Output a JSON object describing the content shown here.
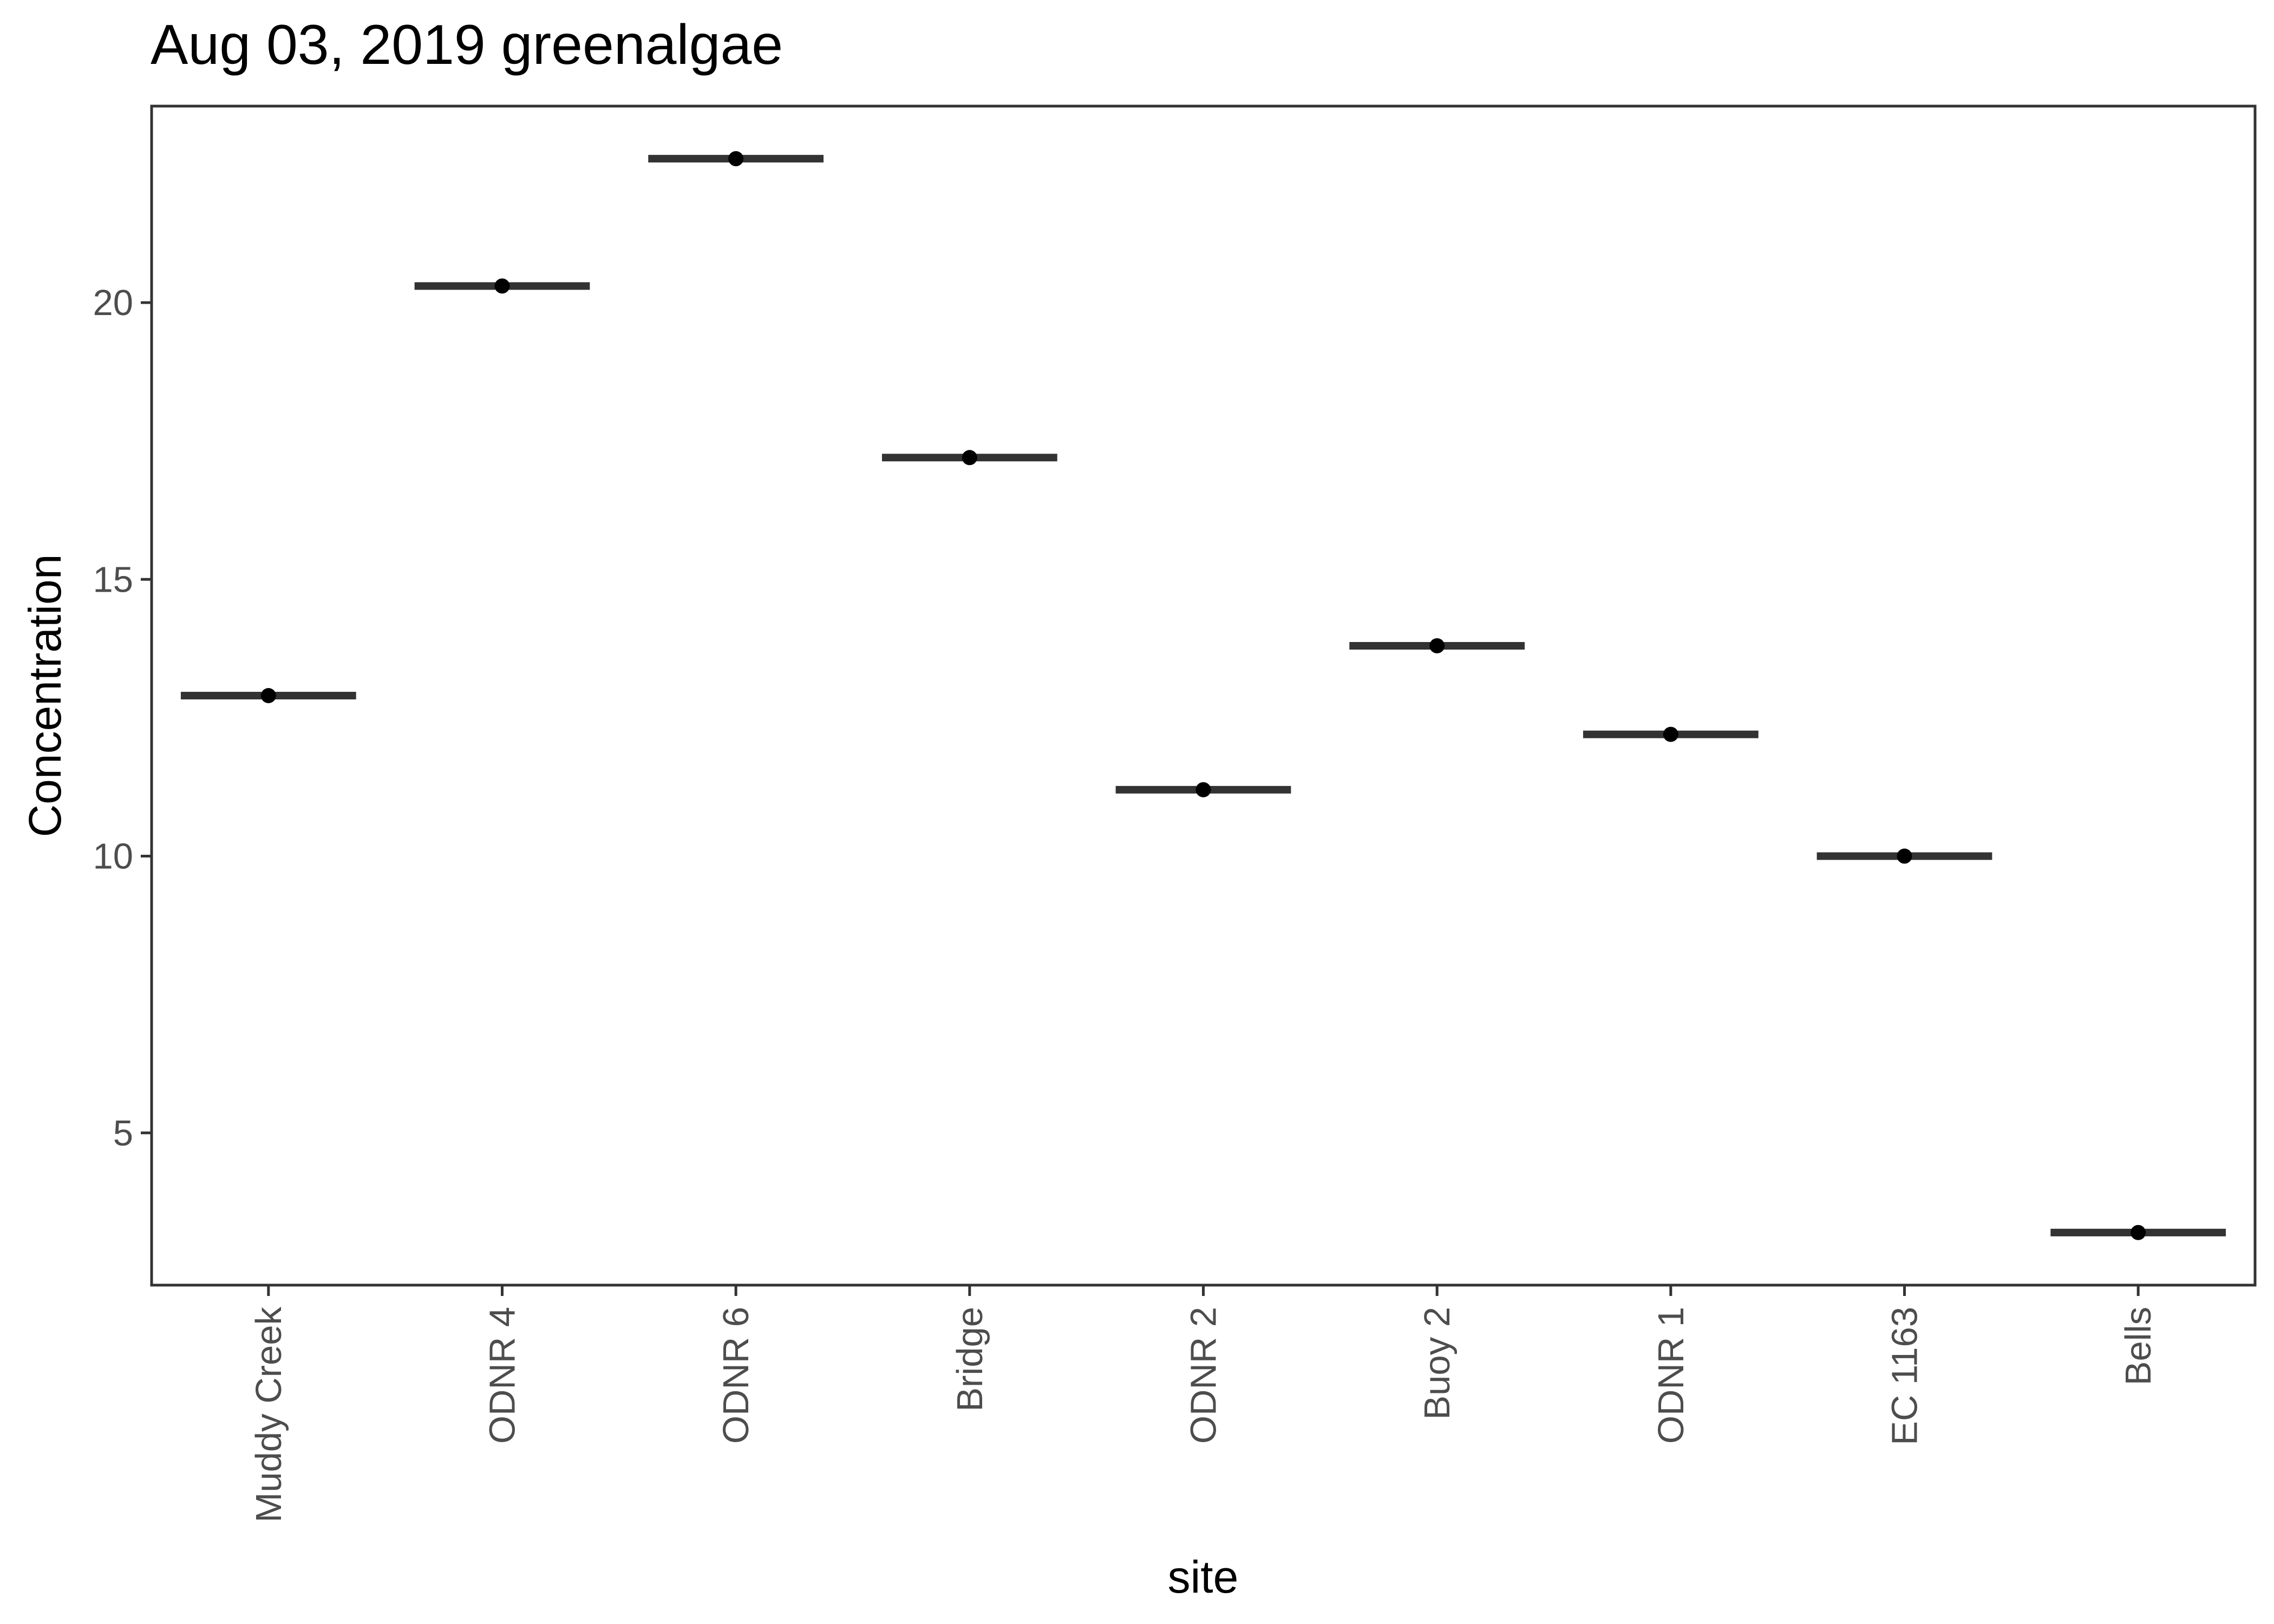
{
  "chart_data": {
    "type": "scatter",
    "title": "Aug 03, 2019 greenalgae",
    "xlabel": "site",
    "ylabel": "Concentration",
    "categories": [
      "Muddy Creek",
      "ODNR 4",
      "ODNR 6",
      "Bridge",
      "ODNR 2",
      "Buoy 2",
      "ODNR 1",
      "EC 1163",
      "Bells"
    ],
    "values": [
      12.9,
      20.3,
      22.6,
      17.2,
      11.2,
      13.8,
      12.2,
      10.0,
      3.2
    ],
    "ylim": [
      2.25,
      23.55
    ],
    "yticks": [
      5,
      10,
      15,
      20
    ],
    "grid": false,
    "legend": "none",
    "colors": {
      "point": "#000000",
      "crossbar": "#333333",
      "panel_border": "#333333",
      "tick": "#333333",
      "tick_label": "#4d4d4d"
    }
  }
}
